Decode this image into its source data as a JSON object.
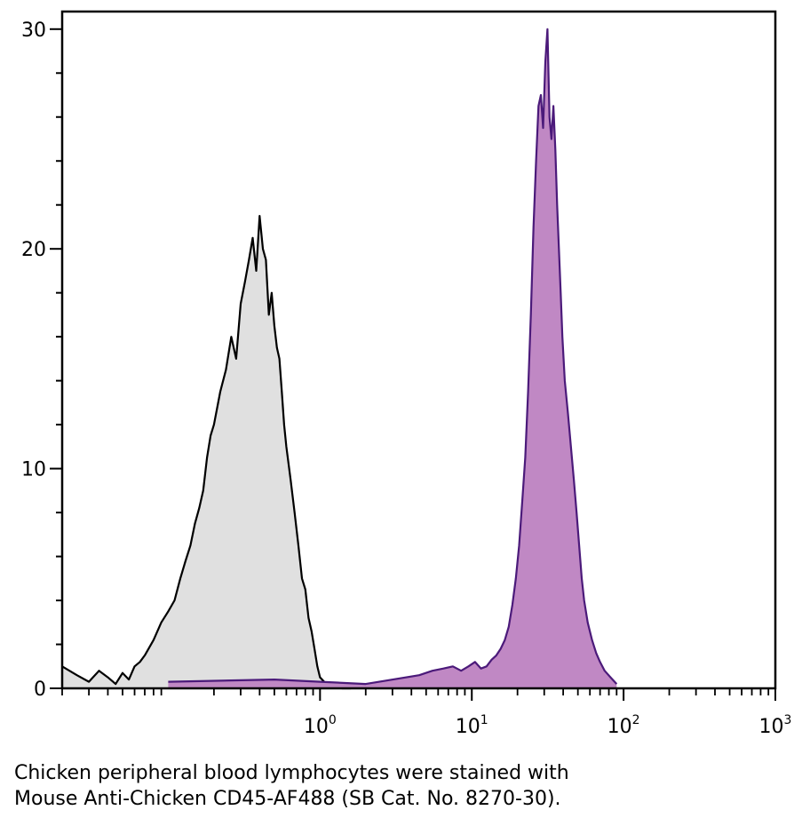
{
  "chart_data": {
    "type": "area",
    "x_scale": "log",
    "xlim": [
      0.02,
      1000
    ],
    "ylim": [
      0,
      30.8
    ],
    "x_ticks": [
      {
        "value": 1,
        "base": "10",
        "exp": "0"
      },
      {
        "value": 10,
        "base": "10",
        "exp": "1"
      },
      {
        "value": 100,
        "base": "10",
        "exp": "2"
      },
      {
        "value": 1000,
        "base": "10",
        "exp": "3"
      }
    ],
    "y_ticks": [
      0,
      10,
      20,
      30
    ],
    "grid": false,
    "series": [
      {
        "color": "#000000",
        "fill": "#e0e0e0",
        "x": [
          0.02,
          0.025,
          0.03,
          0.035,
          0.04,
          0.045,
          0.05,
          0.055,
          0.06,
          0.065,
          0.07,
          0.08,
          0.09,
          0.1,
          0.11,
          0.12,
          0.13,
          0.14,
          0.15,
          0.16,
          0.17,
          0.18,
          0.19,
          0.2,
          0.22,
          0.24,
          0.26,
          0.28,
          0.3,
          0.32,
          0.34,
          0.36,
          0.38,
          0.4,
          0.42,
          0.44,
          0.46,
          0.48,
          0.5,
          0.52,
          0.54,
          0.56,
          0.58,
          0.6,
          0.64,
          0.68,
          0.72,
          0.76,
          0.8,
          0.84,
          0.88,
          0.92,
          0.96,
          1.0,
          1.1,
          1.2,
          1.4,
          1.6
        ],
        "values": [
          1.0,
          0.6,
          0.3,
          0.8,
          0.5,
          0.2,
          0.7,
          0.4,
          1.0,
          1.2,
          1.5,
          2.2,
          3.0,
          3.5,
          4.0,
          5.0,
          5.8,
          6.5,
          7.5,
          8.2,
          9.0,
          10.5,
          11.5,
          12.0,
          13.5,
          14.5,
          16.0,
          15.0,
          17.5,
          18.5,
          19.5,
          20.5,
          19.0,
          21.5,
          20.0,
          19.5,
          17.0,
          18.0,
          16.5,
          15.5,
          15.0,
          13.5,
          12.0,
          11.0,
          9.5,
          8.0,
          6.5,
          5.0,
          4.5,
          3.2,
          2.6,
          1.8,
          1.0,
          0.5,
          0.2,
          0.1,
          0.0,
          0.0
        ]
      },
      {
        "color": "#4b1a7a",
        "fill": "#c088c4",
        "x": [
          0.1,
          0.5,
          1.0,
          2.0,
          4.5,
          5.5,
          6.5,
          7.5,
          8.5,
          9.5,
          10.5,
          11.5,
          12.5,
          13.5,
          14.5,
          15.5,
          16.5,
          17.5,
          18.5,
          19.5,
          20.5,
          21.5,
          22.5,
          23.5,
          24.5,
          25.5,
          26.5,
          27.5,
          28.5,
          29.5,
          30.5,
          31.5,
          32.5,
          33.5,
          34.5,
          35.5,
          36.5,
          37.5,
          38.5,
          39.5,
          41.0,
          43.0,
          45.0,
          47.0,
          49.0,
          51.0,
          53.0,
          55.0,
          58.0,
          62.0,
          66.0,
          70.0,
          75.0,
          82.0,
          90.0
        ],
        "values": [
          0.3,
          0.4,
          0.3,
          0.2,
          0.6,
          0.8,
          0.9,
          1.0,
          0.8,
          1.0,
          1.2,
          0.9,
          1.0,
          1.3,
          1.5,
          1.8,
          2.2,
          2.8,
          3.8,
          5.0,
          6.5,
          8.5,
          10.5,
          13.5,
          17.0,
          21.0,
          24.0,
          26.5,
          27.0,
          25.5,
          28.5,
          30.0,
          26.0,
          25.0,
          26.5,
          24.5,
          22.0,
          20.0,
          18.0,
          16.0,
          14.0,
          12.5,
          11.0,
          9.5,
          8.0,
          6.5,
          5.0,
          4.0,
          3.0,
          2.2,
          1.6,
          1.2,
          0.8,
          0.5,
          0.2
        ]
      }
    ]
  },
  "caption": {
    "line1": "Chicken peripheral blood lymphocytes were stained with",
    "line2": "Mouse Anti-Chicken CD45-AF488 (SB Cat. No. 8270-30)."
  }
}
